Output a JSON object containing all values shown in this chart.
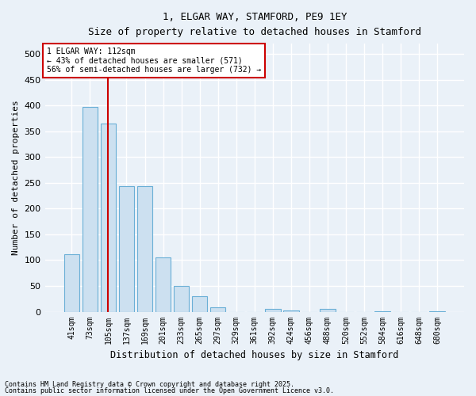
{
  "title1": "1, ELGAR WAY, STAMFORD, PE9 1EY",
  "title2": "Size of property relative to detached houses in Stamford",
  "xlabel": "Distribution of detached houses by size in Stamford",
  "ylabel": "Number of detached properties",
  "categories": [
    "41sqm",
    "73sqm",
    "105sqm",
    "137sqm",
    "169sqm",
    "201sqm",
    "233sqm",
    "265sqm",
    "297sqm",
    "329sqm",
    "361sqm",
    "392sqm",
    "424sqm",
    "456sqm",
    "488sqm",
    "520sqm",
    "552sqm",
    "584sqm",
    "616sqm",
    "648sqm",
    "680sqm"
  ],
  "values": [
    112,
    398,
    365,
    243,
    243,
    105,
    50,
    30,
    8,
    0,
    0,
    5,
    3,
    0,
    5,
    0,
    0,
    1,
    0,
    0,
    1
  ],
  "bar_color": "#cce0f0",
  "bar_edgecolor": "#6aafd6",
  "red_line_color": "#cc0000",
  "annotation_title": "1 ELGAR WAY: 112sqm",
  "annotation_line1": "← 43% of detached houses are smaller (571)",
  "annotation_line2": "56% of semi-detached houses are larger (732) →",
  "annotation_box_color": "#ffffff",
  "annotation_box_edgecolor": "#cc0000",
  "background_color": "#eaf1f8",
  "grid_color": "#ffffff",
  "footnote1": "Contains HM Land Registry data © Crown copyright and database right 2025.",
  "footnote2": "Contains public sector information licensed under the Open Government Licence v3.0.",
  "ylim": [
    0,
    520
  ],
  "yticks": [
    0,
    50,
    100,
    150,
    200,
    250,
    300,
    350,
    400,
    450,
    500
  ]
}
